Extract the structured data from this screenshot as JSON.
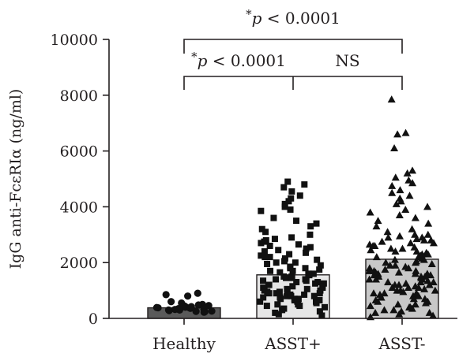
{
  "chart_data": {
    "type": "bar",
    "ylabel": "IgG anti-FcεRIα (ng/ml)",
    "ylim": [
      0,
      10000
    ],
    "yticks": [
      0,
      2000,
      4000,
      6000,
      8000,
      10000
    ],
    "categories": [
      "Healthy",
      "ASST+",
      "ASST-"
    ],
    "bars": [
      {
        "category": "Healthy",
        "value": 380,
        "color": "#5a5a5a",
        "marker": "circle"
      },
      {
        "category": "ASST+",
        "value": 1560,
        "color": "#e6e6e6",
        "marker": "square"
      },
      {
        "category": "ASST-",
        "value": 2120,
        "color": "#c8c8c8",
        "marker": "triangle"
      }
    ],
    "points": {
      "Healthy": [
        850,
        900,
        800,
        550,
        600,
        500,
        480,
        450,
        420,
        400,
        390,
        380,
        360,
        350,
        330,
        320,
        300,
        280,
        260,
        250,
        240,
        220,
        380,
        420,
        460,
        300
      ],
      "ASST+": [
        4900,
        4800,
        4700,
        4550,
        4400,
        4300,
        4200,
        4100,
        4000,
        3900,
        3850,
        3600,
        3500,
        3400,
        3300,
        3200,
        3100,
        3000,
        2900,
        2850,
        2800,
        2750,
        2700,
        2650,
        2600,
        2550,
        2500,
        2450,
        2400,
        2350,
        2300,
        2250,
        2200,
        2150,
        2100,
        2050,
        2000,
        1950,
        1900,
        1850,
        1800,
        1750,
        1700,
        1650,
        1600,
        1550,
        1500,
        1450,
        1400,
        1350,
        1300,
        1250,
        1200,
        1150,
        1100,
        1050,
        1000,
        950,
        900,
        850,
        800,
        750,
        700,
        650,
        600,
        550,
        500,
        450,
        400,
        350,
        300,
        250,
        200,
        150,
        100,
        1500,
        1400,
        1300,
        1200,
        1100,
        1000,
        900,
        800,
        700,
        600,
        500,
        1800,
        1600,
        1000,
        800,
        600,
        2200,
        2000,
        1700,
        900,
        700,
        1450,
        1250,
        1050,
        850,
        650,
        450,
        1150,
        950,
        750,
        1350
      ],
      "ASST-": [
        7850,
        6650,
        6600,
        6100,
        5300,
        5200,
        5050,
        4950,
        4850,
        4750,
        4600,
        4500,
        4400,
        4300,
        4200,
        4100,
        4000,
        3900,
        3800,
        3700,
        3600,
        3500,
        3400,
        3300,
        3200,
        3100,
        3000,
        2950,
        2900,
        2850,
        2800,
        2750,
        2700,
        2650,
        2600,
        2550,
        2500,
        2450,
        2400,
        2350,
        2300,
        2250,
        2200,
        2150,
        2100,
        2050,
        2000,
        1950,
        1900,
        1850,
        1800,
        1750,
        1700,
        1650,
        1600,
        1550,
        1500,
        1450,
        1400,
        1350,
        1300,
        1250,
        1200,
        1150,
        1100,
        1050,
        1000,
        950,
        900,
        850,
        800,
        750,
        700,
        650,
        600,
        550,
        500,
        450,
        400,
        350,
        300,
        250,
        200,
        150,
        100,
        50,
        2800,
        2600,
        2400,
        2200,
        2000,
        1800,
        1600,
        1400,
        1200,
        1000,
        800,
        600,
        400,
        200,
        2700,
        2500,
        2300,
        2100,
        1900,
        1700,
        1500,
        1300,
        1100,
        900,
        700,
        500,
        300,
        3000,
        2900,
        1600,
        1500,
        1400,
        1300,
        1200,
        1100,
        1000,
        900,
        800,
        1700,
        1650,
        1550
      ]
    },
    "annotations": [
      {
        "from": "Healthy",
        "to": "ASST-",
        "level": 10000,
        "star": "*",
        "p": "p",
        "rest": " < 0.0001"
      },
      {
        "from": "Healthy",
        "to": "ASST+",
        "level": 8600,
        "star": "*",
        "p": "p",
        "rest": " < 0.0001"
      },
      {
        "from": "ASST+",
        "to": "ASST-",
        "level": 8600,
        "text": "NS"
      }
    ]
  }
}
